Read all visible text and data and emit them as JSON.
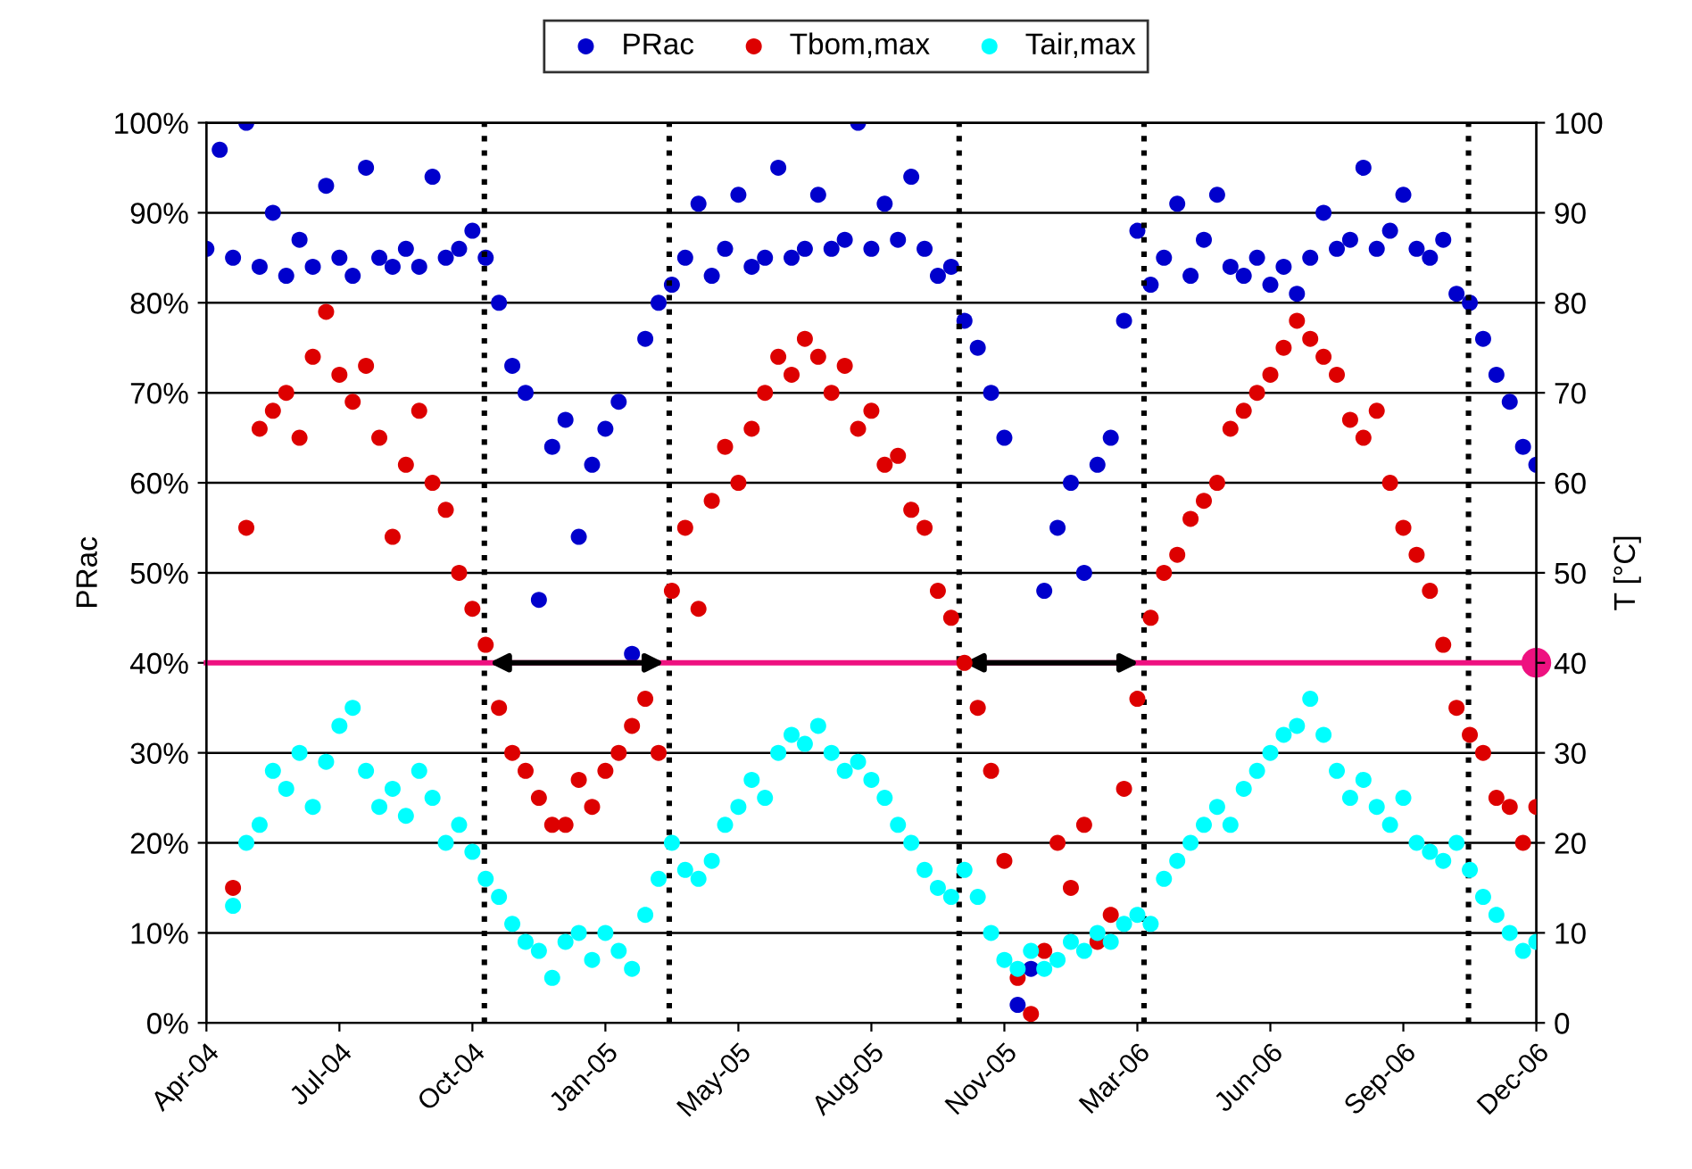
{
  "chart_data": {
    "type": "scatter",
    "ylabel": "PRac",
    "y2label": "T [°C]",
    "x": [
      "2004-04-01",
      "2004-04-11",
      "2004-04-21",
      "2004-05-01",
      "2004-05-11",
      "2004-05-21",
      "2004-05-31",
      "2004-06-10",
      "2004-06-20",
      "2004-06-30",
      "2004-07-10",
      "2004-07-20",
      "2004-07-30",
      "2004-08-09",
      "2004-08-19",
      "2004-08-29",
      "2004-09-08",
      "2004-09-18",
      "2004-09-28",
      "2004-10-08",
      "2004-10-18",
      "2004-10-28",
      "2004-11-07",
      "2004-11-17",
      "2004-11-27",
      "2004-12-07",
      "2004-12-17",
      "2004-12-27",
      "2005-01-06",
      "2005-01-16",
      "2005-01-26",
      "2005-02-05",
      "2005-02-15",
      "2005-02-25",
      "2005-03-07",
      "2005-03-17",
      "2005-03-27",
      "2005-04-06",
      "2005-04-16",
      "2005-04-26",
      "2005-05-06",
      "2005-05-16",
      "2005-05-26",
      "2005-06-05",
      "2005-06-15",
      "2005-06-25",
      "2005-07-05",
      "2005-07-15",
      "2005-07-25",
      "2005-08-04",
      "2005-08-14",
      "2005-08-24",
      "2005-09-03",
      "2005-09-13",
      "2005-09-23",
      "2005-10-03",
      "2005-10-13",
      "2005-10-23",
      "2005-11-02",
      "2005-11-12",
      "2005-11-22",
      "2005-12-02",
      "2005-12-12",
      "2005-12-22",
      "2006-01-01",
      "2006-01-11",
      "2006-01-21",
      "2006-01-31",
      "2006-02-10",
      "2006-02-20",
      "2006-03-02",
      "2006-03-12",
      "2006-03-22",
      "2006-04-01",
      "2006-04-11",
      "2006-04-21",
      "2006-05-01",
      "2006-05-11",
      "2006-05-21",
      "2006-05-31",
      "2006-06-10",
      "2006-06-20",
      "2006-06-30",
      "2006-07-10",
      "2006-07-20",
      "2006-07-30",
      "2006-08-09",
      "2006-08-19",
      "2006-08-29",
      "2006-09-08",
      "2006-09-18",
      "2006-09-28",
      "2006-10-08",
      "2006-10-18",
      "2006-10-28",
      "2006-11-07",
      "2006-11-17",
      "2006-11-27",
      "2006-12-07",
      "2006-12-17",
      "2006-12-27"
    ],
    "series": [
      {
        "name": "PRac",
        "color": "#0000cc",
        "values": [
          86,
          97,
          85,
          100,
          84,
          90,
          83,
          87,
          84,
          93,
          85,
          83,
          95,
          85,
          84,
          86,
          84,
          94,
          85,
          86,
          88,
          85,
          80,
          73,
          70,
          47,
          64,
          67,
          54,
          62,
          66,
          69,
          41,
          76,
          80,
          82,
          85,
          91,
          83,
          86,
          92,
          84,
          85,
          95,
          85,
          86,
          92,
          86,
          87,
          100,
          86,
          91,
          87,
          94,
          86,
          83,
          84,
          78,
          75,
          70,
          65,
          2,
          6,
          48,
          55,
          60,
          50,
          62,
          65,
          78,
          88,
          82,
          85,
          91,
          83,
          87,
          92,
          84,
          83,
          85,
          82,
          84,
          81,
          85,
          90,
          86,
          87,
          95,
          86,
          88,
          92,
          86,
          85,
          87,
          81,
          80,
          76,
          72,
          69,
          64,
          62
        ]
      },
      {
        "name": "Tbom,max",
        "color": "#dd0000",
        "axis": "y2",
        "values": [
          null,
          null,
          15,
          55,
          66,
          68,
          70,
          65,
          74,
          79,
          72,
          69,
          73,
          65,
          54,
          62,
          68,
          60,
          57,
          50,
          46,
          42,
          35,
          30,
          28,
          25,
          22,
          22,
          27,
          24,
          28,
          30,
          33,
          36,
          30,
          48,
          55,
          46,
          58,
          64,
          60,
          66,
          70,
          74,
          72,
          76,
          74,
          70,
          73,
          66,
          68,
          62,
          63,
          57,
          55,
          48,
          45,
          40,
          35,
          28,
          18,
          5,
          1,
          8,
          20,
          15,
          22,
          9,
          12,
          26,
          36,
          45,
          50,
          52,
          56,
          58,
          60,
          66,
          68,
          70,
          72,
          75,
          78,
          76,
          74,
          72,
          67,
          65,
          68,
          60,
          55,
          52,
          48,
          42,
          35,
          32,
          30,
          25,
          24,
          20,
          24
        ]
      },
      {
        "name": "Tair,max",
        "color": "#00ffff",
        "axis": "y2",
        "values": [
          null,
          null,
          13,
          20,
          22,
          28,
          26,
          30,
          24,
          29,
          33,
          35,
          28,
          24,
          26,
          23,
          28,
          25,
          20,
          22,
          19,
          16,
          14,
          11,
          9,
          8,
          5,
          9,
          10,
          7,
          10,
          8,
          6,
          12,
          16,
          20,
          17,
          16,
          18,
          22,
          24,
          27,
          25,
          30,
          32,
          31,
          33,
          30,
          28,
          29,
          27,
          25,
          22,
          20,
          17,
          15,
          14,
          17,
          14,
          10,
          7,
          6,
          8,
          6,
          7,
          9,
          8,
          10,
          9,
          11,
          12,
          11,
          16,
          18,
          20,
          22,
          24,
          22,
          26,
          28,
          30,
          32,
          33,
          36,
          32,
          28,
          25,
          27,
          24,
          22,
          25,
          20,
          19,
          18,
          20,
          17,
          14,
          12,
          10,
          8,
          9
        ]
      }
    ],
    "xlim": [
      "2004-04-01",
      "2006-12-27"
    ],
    "xticks": [
      {
        "value": "2004-04-01",
        "label": "Apr-04"
      },
      {
        "value": "2004-07-10",
        "label": "Jul-04"
      },
      {
        "value": "2004-10-18",
        "label": "Oct-04"
      },
      {
        "value": "2005-01-26",
        "label": "Jan-05"
      },
      {
        "value": "2005-05-06",
        "label": "May-05"
      },
      {
        "value": "2005-08-14",
        "label": "Aug-05"
      },
      {
        "value": "2005-11-22",
        "label": "Nov-05"
      },
      {
        "value": "2006-03-02",
        "label": "Mar-06"
      },
      {
        "value": "2006-06-10",
        "label": "Jun-06"
      },
      {
        "value": "2006-09-18",
        "label": "Sep-06"
      },
      {
        "value": "2006-12-27",
        "label": "Dec-06"
      }
    ],
    "ylim": [
      0,
      100
    ],
    "yticks": [
      {
        "value": 0,
        "label": "0%"
      },
      {
        "value": 10,
        "label": "10%"
      },
      {
        "value": 20,
        "label": "20%"
      },
      {
        "value": 30,
        "label": "30%"
      },
      {
        "value": 40,
        "label": "40%"
      },
      {
        "value": 50,
        "label": "50%"
      },
      {
        "value": 60,
        "label": "60%"
      },
      {
        "value": 70,
        "label": "70%"
      },
      {
        "value": 80,
        "label": "80%"
      },
      {
        "value": 90,
        "label": "90%"
      },
      {
        "value": 100,
        "label": "100%"
      }
    ],
    "y2lim": [
      0,
      100
    ],
    "y2ticks": [
      0,
      10,
      20,
      30,
      40,
      50,
      60,
      70,
      80,
      90,
      100
    ],
    "ref_lines": [
      {
        "axis": "x",
        "value": "2004-10-27",
        "color": "#000000",
        "line_style": "dotted"
      },
      {
        "axis": "x",
        "value": "2005-03-15",
        "color": "#000000",
        "line_style": "dotted"
      },
      {
        "axis": "x",
        "value": "2005-10-19",
        "color": "#000000",
        "line_style": "dotted"
      },
      {
        "axis": "x",
        "value": "2006-03-07",
        "color": "#000000",
        "line_style": "dotted"
      },
      {
        "axis": "x",
        "value": "2006-11-06",
        "color": "#000000",
        "line_style": "dotted"
      },
      {
        "axis": "y",
        "value": 40,
        "color": "#ee1180",
        "line_style": "solid"
      }
    ],
    "grid": "y",
    "legend": "top",
    "marker": "circle"
  }
}
